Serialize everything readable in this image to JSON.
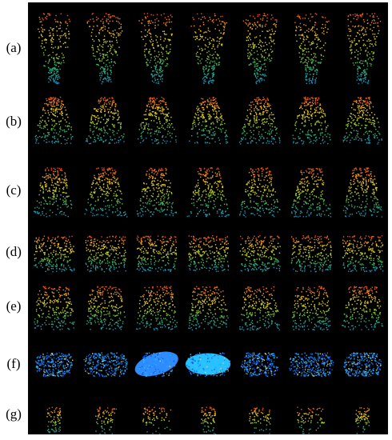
{
  "rows": [
    {
      "label": "(a)",
      "shape": "pillar",
      "palette": "warm",
      "cells": [
        1,
        2,
        3,
        4,
        5,
        6,
        7
      ]
    },
    {
      "label": "(b)",
      "shape": "dome",
      "palette": "warm",
      "cells": [
        1,
        2,
        3,
        4,
        5,
        6,
        7
      ]
    },
    {
      "label": "(c)",
      "shape": "mound",
      "palette": "warm",
      "cells": [
        1,
        2,
        3,
        4,
        5,
        6,
        7
      ]
    },
    {
      "label": "(d)",
      "shape": "flat",
      "palette": "warm",
      "cells": [
        1,
        2,
        3,
        4,
        5,
        6,
        7
      ]
    },
    {
      "label": "(e)",
      "shape": "crown",
      "palette": "warm",
      "cells": [
        1,
        2,
        3,
        4,
        5,
        6,
        7
      ]
    },
    {
      "label": "(f)",
      "shape": "ellipse",
      "palette": "blue",
      "cells": [
        1,
        2,
        3,
        4,
        5,
        6,
        7
      ]
    },
    {
      "label": "(g)",
      "shape": "sparse",
      "palette": "warm",
      "cells": [
        1,
        2,
        3,
        4,
        5,
        6,
        7
      ]
    }
  ],
  "colors": {
    "background": "#000000",
    "page": "#ffffff",
    "warm_gradient": [
      "#e0301a",
      "#f07a18",
      "#e8c020",
      "#d8d020",
      "#9cc828",
      "#38b060",
      "#20a8a8",
      "#1a6fb0"
    ],
    "blue_gradient": [
      "#20d0ff",
      "#1a90f0",
      "#1040e0",
      "#d8d8a0"
    ]
  }
}
